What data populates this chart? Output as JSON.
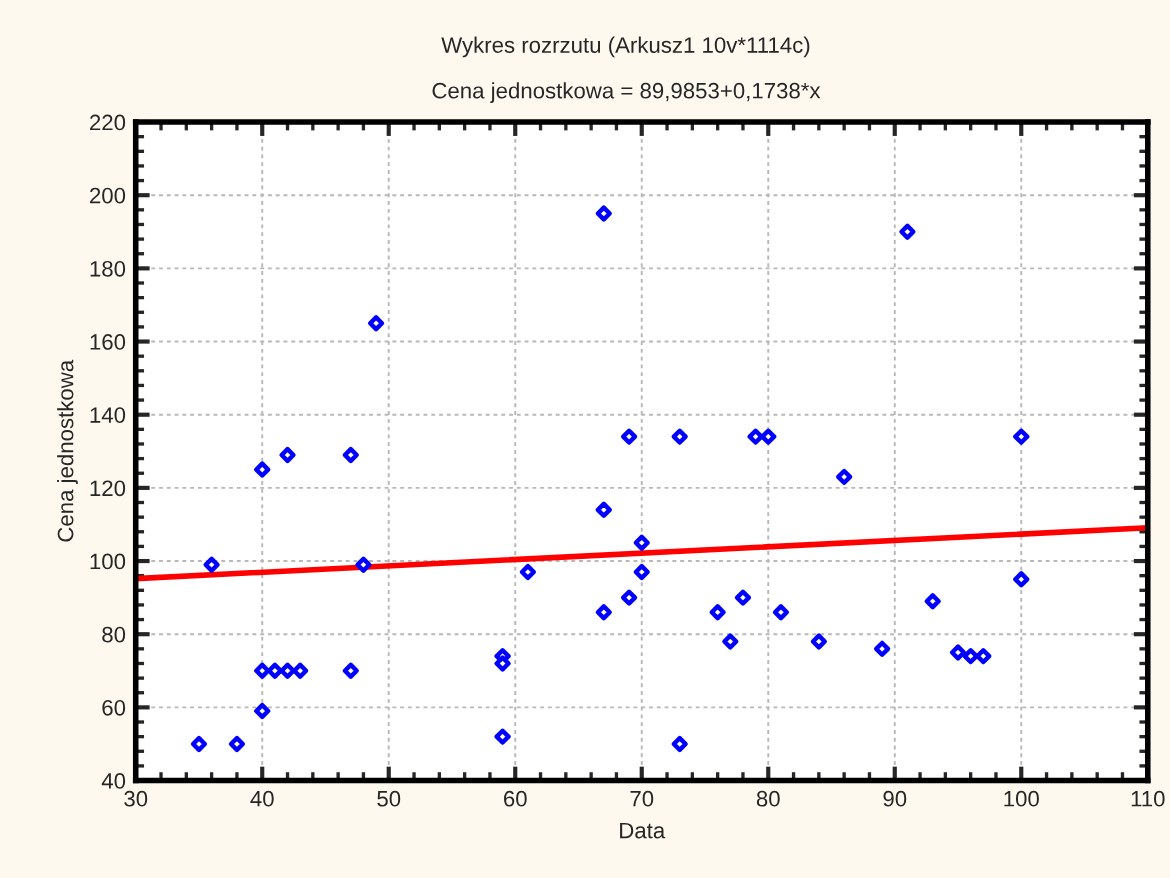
{
  "chart_data": {
    "type": "scatter",
    "title": "Wykres rozrzutu (Arkusz1 10v*1114c)",
    "subtitle": "Cena jednostkowa = 89,9853+0,1738*x",
    "xlabel": "Data",
    "ylabel": "Cena jednostkowa",
    "xlim": [
      30,
      110
    ],
    "xticks": [
      30,
      40,
      50,
      60,
      70,
      80,
      90,
      100,
      110
    ],
    "ylim": [
      40,
      220
    ],
    "yticks": [
      40,
      60,
      80,
      100,
      120,
      140,
      160,
      180,
      200,
      220
    ],
    "grid": true,
    "legend": false,
    "series": [
      {
        "marker": "diamond",
        "color": "#0000ff",
        "x": [
          35,
          36,
          38,
          40,
          40,
          40,
          41,
          42,
          43,
          42,
          47,
          47,
          48,
          49,
          59,
          59,
          59,
          61,
          67,
          67,
          67,
          69,
          69,
          70,
          70,
          73,
          73,
          76,
          77,
          78,
          79,
          80,
          81,
          84,
          86,
          89,
          91,
          93,
          95,
          96,
          97,
          100,
          100
        ],
        "values": [
          50,
          99,
          50,
          125,
          59,
          70,
          70,
          70,
          70,
          129,
          129,
          70,
          99,
          165,
          74,
          72,
          52,
          97,
          195,
          114,
          86,
          134,
          90,
          97,
          105,
          134,
          50,
          86,
          78,
          90,
          134,
          134,
          86,
          78,
          123,
          76,
          190,
          89,
          75,
          74,
          74,
          134,
          95
        ]
      },
      {
        "type": "line",
        "color": "#ff0000",
        "x": [
          30,
          110
        ],
        "values": [
          95.2,
          109.1
        ]
      }
    ]
  }
}
